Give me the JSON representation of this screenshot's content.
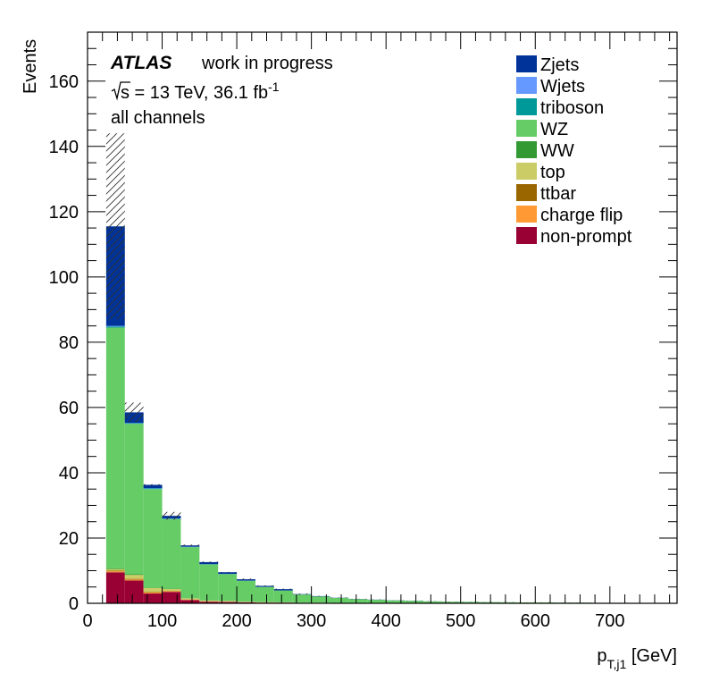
{
  "chart_data": {
    "type": "stacked-histogram",
    "xlabel": "p_{T,j1} [GeV]",
    "xlabel_main": "p",
    "xlabel_sub": "T,j1",
    "xlabel_unit": " [GeV]",
    "ylabel": "Events",
    "xlim": [
      0,
      790
    ],
    "ylim": [
      0,
      175
    ],
    "x_ticks": [
      0,
      100,
      200,
      300,
      400,
      500,
      600,
      700
    ],
    "y_ticks": [
      0,
      20,
      40,
      60,
      80,
      100,
      120,
      140,
      160
    ],
    "bin_edges": [
      25,
      50,
      75,
      100,
      125,
      150,
      175,
      200,
      225,
      250,
      275,
      300,
      325,
      350,
      375,
      400,
      425,
      450,
      475,
      500,
      525,
      550,
      575,
      600,
      625,
      650,
      675,
      700,
      725,
      750,
      775,
      790
    ],
    "series": [
      {
        "name": "non-prompt",
        "color": "#990033",
        "values": [
          9.5,
          7.0,
          3.0,
          3.5,
          1.0,
          0.5,
          0.4,
          0.3,
          0.2,
          0.2,
          0.1,
          0.1,
          0.1,
          0.05,
          0.05,
          0.05,
          0.05,
          0.03,
          0.03,
          0.03,
          0.02,
          0.02,
          0.02,
          0.01,
          0.01,
          0.01,
          0,
          0,
          0,
          0,
          0
        ]
      },
      {
        "name": "charge flip",
        "color": "#ff9933",
        "values": [
          0.3,
          0.3,
          0.3,
          0.2,
          0.1,
          0.1,
          0.05,
          0.05,
          0.05,
          0.03,
          0.02,
          0.02,
          0.01,
          0.01,
          0,
          0,
          0,
          0,
          0,
          0,
          0,
          0,
          0,
          0,
          0,
          0,
          0,
          0,
          0,
          0,
          0
        ]
      },
      {
        "name": "ttbar",
        "color": "#996600",
        "values": [
          0.2,
          0.2,
          0.2,
          0.1,
          0.05,
          0.05,
          0.05,
          0.03,
          0.02,
          0.02,
          0.01,
          0.01,
          0,
          0,
          0,
          0,
          0,
          0,
          0,
          0,
          0,
          0,
          0,
          0,
          0,
          0,
          0,
          0,
          0,
          0,
          0
        ]
      },
      {
        "name": "top",
        "color": "#cccc66",
        "values": [
          0.5,
          1.2,
          1.2,
          0.6,
          0.4,
          0.2,
          0.2,
          0.1,
          0.1,
          0.05,
          0.05,
          0.05,
          0.02,
          0.02,
          0.02,
          0.01,
          0.01,
          0,
          0,
          0,
          0,
          0,
          0,
          0,
          0,
          0,
          0,
          0,
          0,
          0,
          0
        ]
      },
      {
        "name": "WW",
        "color": "#339933",
        "values": [
          0.2,
          0.2,
          0.1,
          0.1,
          0.05,
          0.05,
          0.05,
          0.03,
          0.02,
          0.02,
          0.01,
          0.01,
          0.01,
          0,
          0,
          0,
          0,
          0,
          0,
          0,
          0,
          0,
          0,
          0,
          0,
          0,
          0,
          0,
          0,
          0,
          0
        ]
      },
      {
        "name": "WZ",
        "color": "#66cc66",
        "values": [
          73.8,
          46.1,
          30.2,
          21.3,
          15.6,
          11.0,
          8.2,
          6.4,
          4.6,
          3.6,
          2.5,
          1.9,
          1.5,
          1.2,
          1.0,
          0.8,
          0.7,
          0.55,
          0.45,
          0.4,
          0.35,
          0.3,
          0.25,
          0.25,
          0.2,
          0.2,
          0.15,
          0.15,
          0.12,
          0.1,
          0.1
        ]
      },
      {
        "name": "triboson",
        "color": "#009999",
        "values": [
          0.3,
          0.2,
          0.2,
          0.15,
          0.1,
          0.1,
          0.05,
          0.05,
          0.05,
          0.03,
          0.03,
          0.02,
          0.02,
          0.02,
          0.01,
          0.01,
          0.01,
          0,
          0,
          0,
          0,
          0,
          0,
          0,
          0,
          0,
          0,
          0,
          0,
          0,
          0
        ]
      },
      {
        "name": "Wjets",
        "color": "#6699ff",
        "values": [
          0.2,
          0.1,
          0.1,
          0.05,
          0.05,
          0.02,
          0.02,
          0.01,
          0.01,
          0,
          0,
          0,
          0,
          0,
          0,
          0,
          0,
          0,
          0,
          0,
          0,
          0,
          0,
          0,
          0,
          0,
          0,
          0,
          0,
          0,
          0
        ]
      },
      {
        "name": "Zjets",
        "color": "#003399",
        "values": [
          30.5,
          3.2,
          1.0,
          0.8,
          0.4,
          0.6,
          0.5,
          0.4,
          0.3,
          0.4,
          0.1,
          0.1,
          0.05,
          0.05,
          0.05,
          0.05,
          0.03,
          0.02,
          0.02,
          0.01,
          0.01,
          0.01,
          0,
          0,
          0,
          0,
          0,
          0,
          0,
          0,
          0
        ]
      }
    ],
    "uncertainty_top": [
      144.0,
      61.5,
      36.5,
      28.0,
      18.0,
      12.8,
      9.6,
      7.6,
      5.5,
      4.5,
      3.0,
      2.3,
      1.8,
      1.4,
      1.2,
      0.95,
      0.85,
      0.65,
      0.55,
      0.48,
      0.42,
      0.37,
      0.3,
      0.3,
      0.24,
      0.23,
      0.17,
      0.17,
      0.14,
      0.12,
      0.12
    ]
  },
  "labels": {
    "atlas": "ATLAS",
    "status": "work in progress",
    "energy_prefix": "s",
    "energy_text": " = 13 TeV, 36.1 fb",
    "lumi_exp": "-1",
    "channel": "all channels"
  }
}
